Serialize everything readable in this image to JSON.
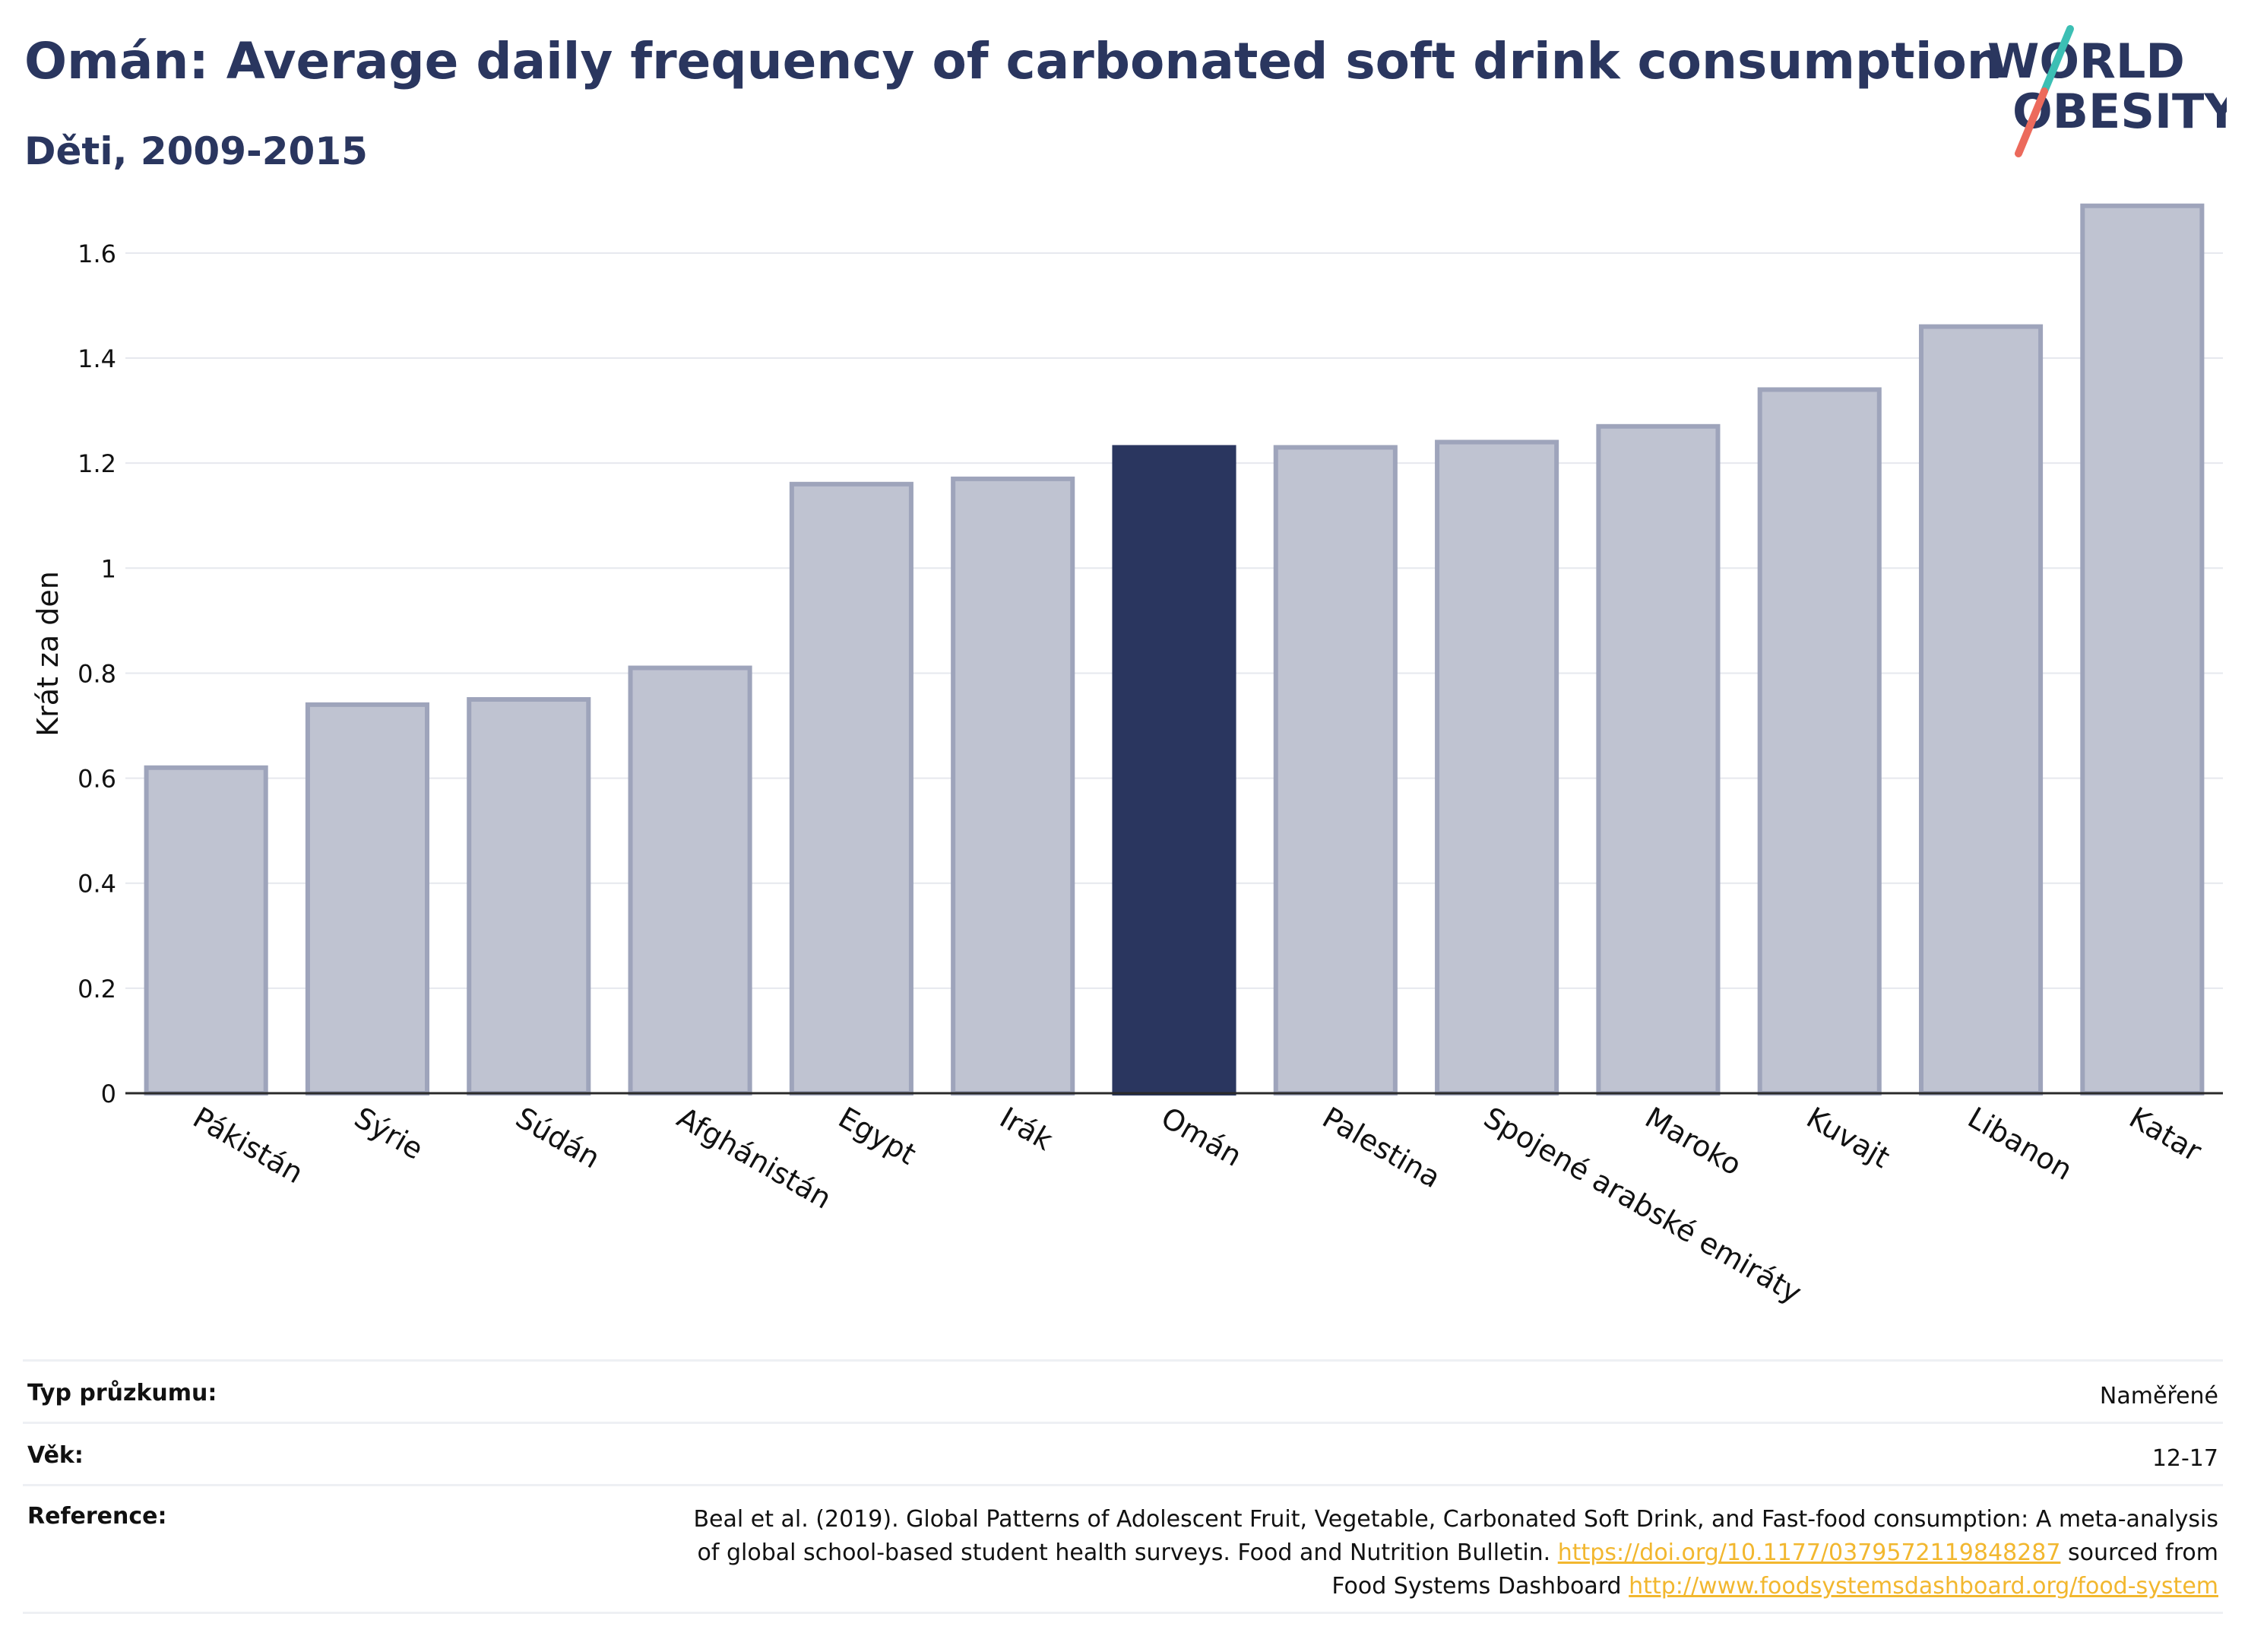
{
  "header": {
    "title": "Omán: Average daily frequency of carbonated soft drink consumption",
    "subtitle": "Děti, 2009-2015"
  },
  "logo": {
    "line1": "WORLD",
    "line2": "OBESITY",
    "colors": {
      "text": "#2a365f",
      "slash_top": "#3cbfb4",
      "slash_bottom": "#ec6a5c"
    }
  },
  "chart_data": {
    "type": "bar",
    "ylabel": "Krát za den",
    "xlabel": "",
    "ylim": [
      0,
      1.72
    ],
    "yticks": [
      0,
      0.2,
      0.4,
      0.6,
      0.8,
      1,
      1.2,
      1.4,
      1.6
    ],
    "ytick_labels": [
      "0",
      "0.2",
      "0.4",
      "0.6",
      "0.8",
      "1",
      "1.2",
      "1.4",
      "1.6"
    ],
    "grid": true,
    "categories": [
      "Pákistán",
      "Sýrie",
      "Súdán",
      "Afghánistán",
      "Egypt",
      "Irák",
      "Omán",
      "Palestina",
      "Spojené arabské emiráty",
      "Maroko",
      "Kuvajt",
      "Libanon",
      "Katar"
    ],
    "values": [
      0.62,
      0.74,
      0.75,
      0.81,
      1.16,
      1.17,
      1.23,
      1.23,
      1.24,
      1.27,
      1.34,
      1.46,
      1.69
    ],
    "highlight": "Omán",
    "colors": {
      "bar": "#bfc3d1",
      "bar_edge": "#9ea4bb",
      "highlight": "#2a365f",
      "grid": "#e6e8ee",
      "axis": "#2a2a2a"
    }
  },
  "info": {
    "rows": [
      {
        "label": "Typ průzkumu:",
        "value": "Naměřené"
      },
      {
        "label": "Věk:",
        "value": "12-17"
      }
    ],
    "reference": {
      "label": "Reference:",
      "line1": "Beal et al. (2019). Global Patterns of Adolescent Fruit, Vegetable, Carbonated Soft Drink, and Fast-food consumption: A meta-analysis",
      "line2_prefix": "of global school-based student health surveys. Food and Nutrition Bulletin.",
      "doi_link": "https://doi.org/10.1177/0379572119848287",
      "line2_suffix": "sourced from",
      "line3_prefix": "Food Systems Dashboard",
      "dashboard_link": "http://www.foodsystemsdashboard.org/food-system"
    }
  }
}
